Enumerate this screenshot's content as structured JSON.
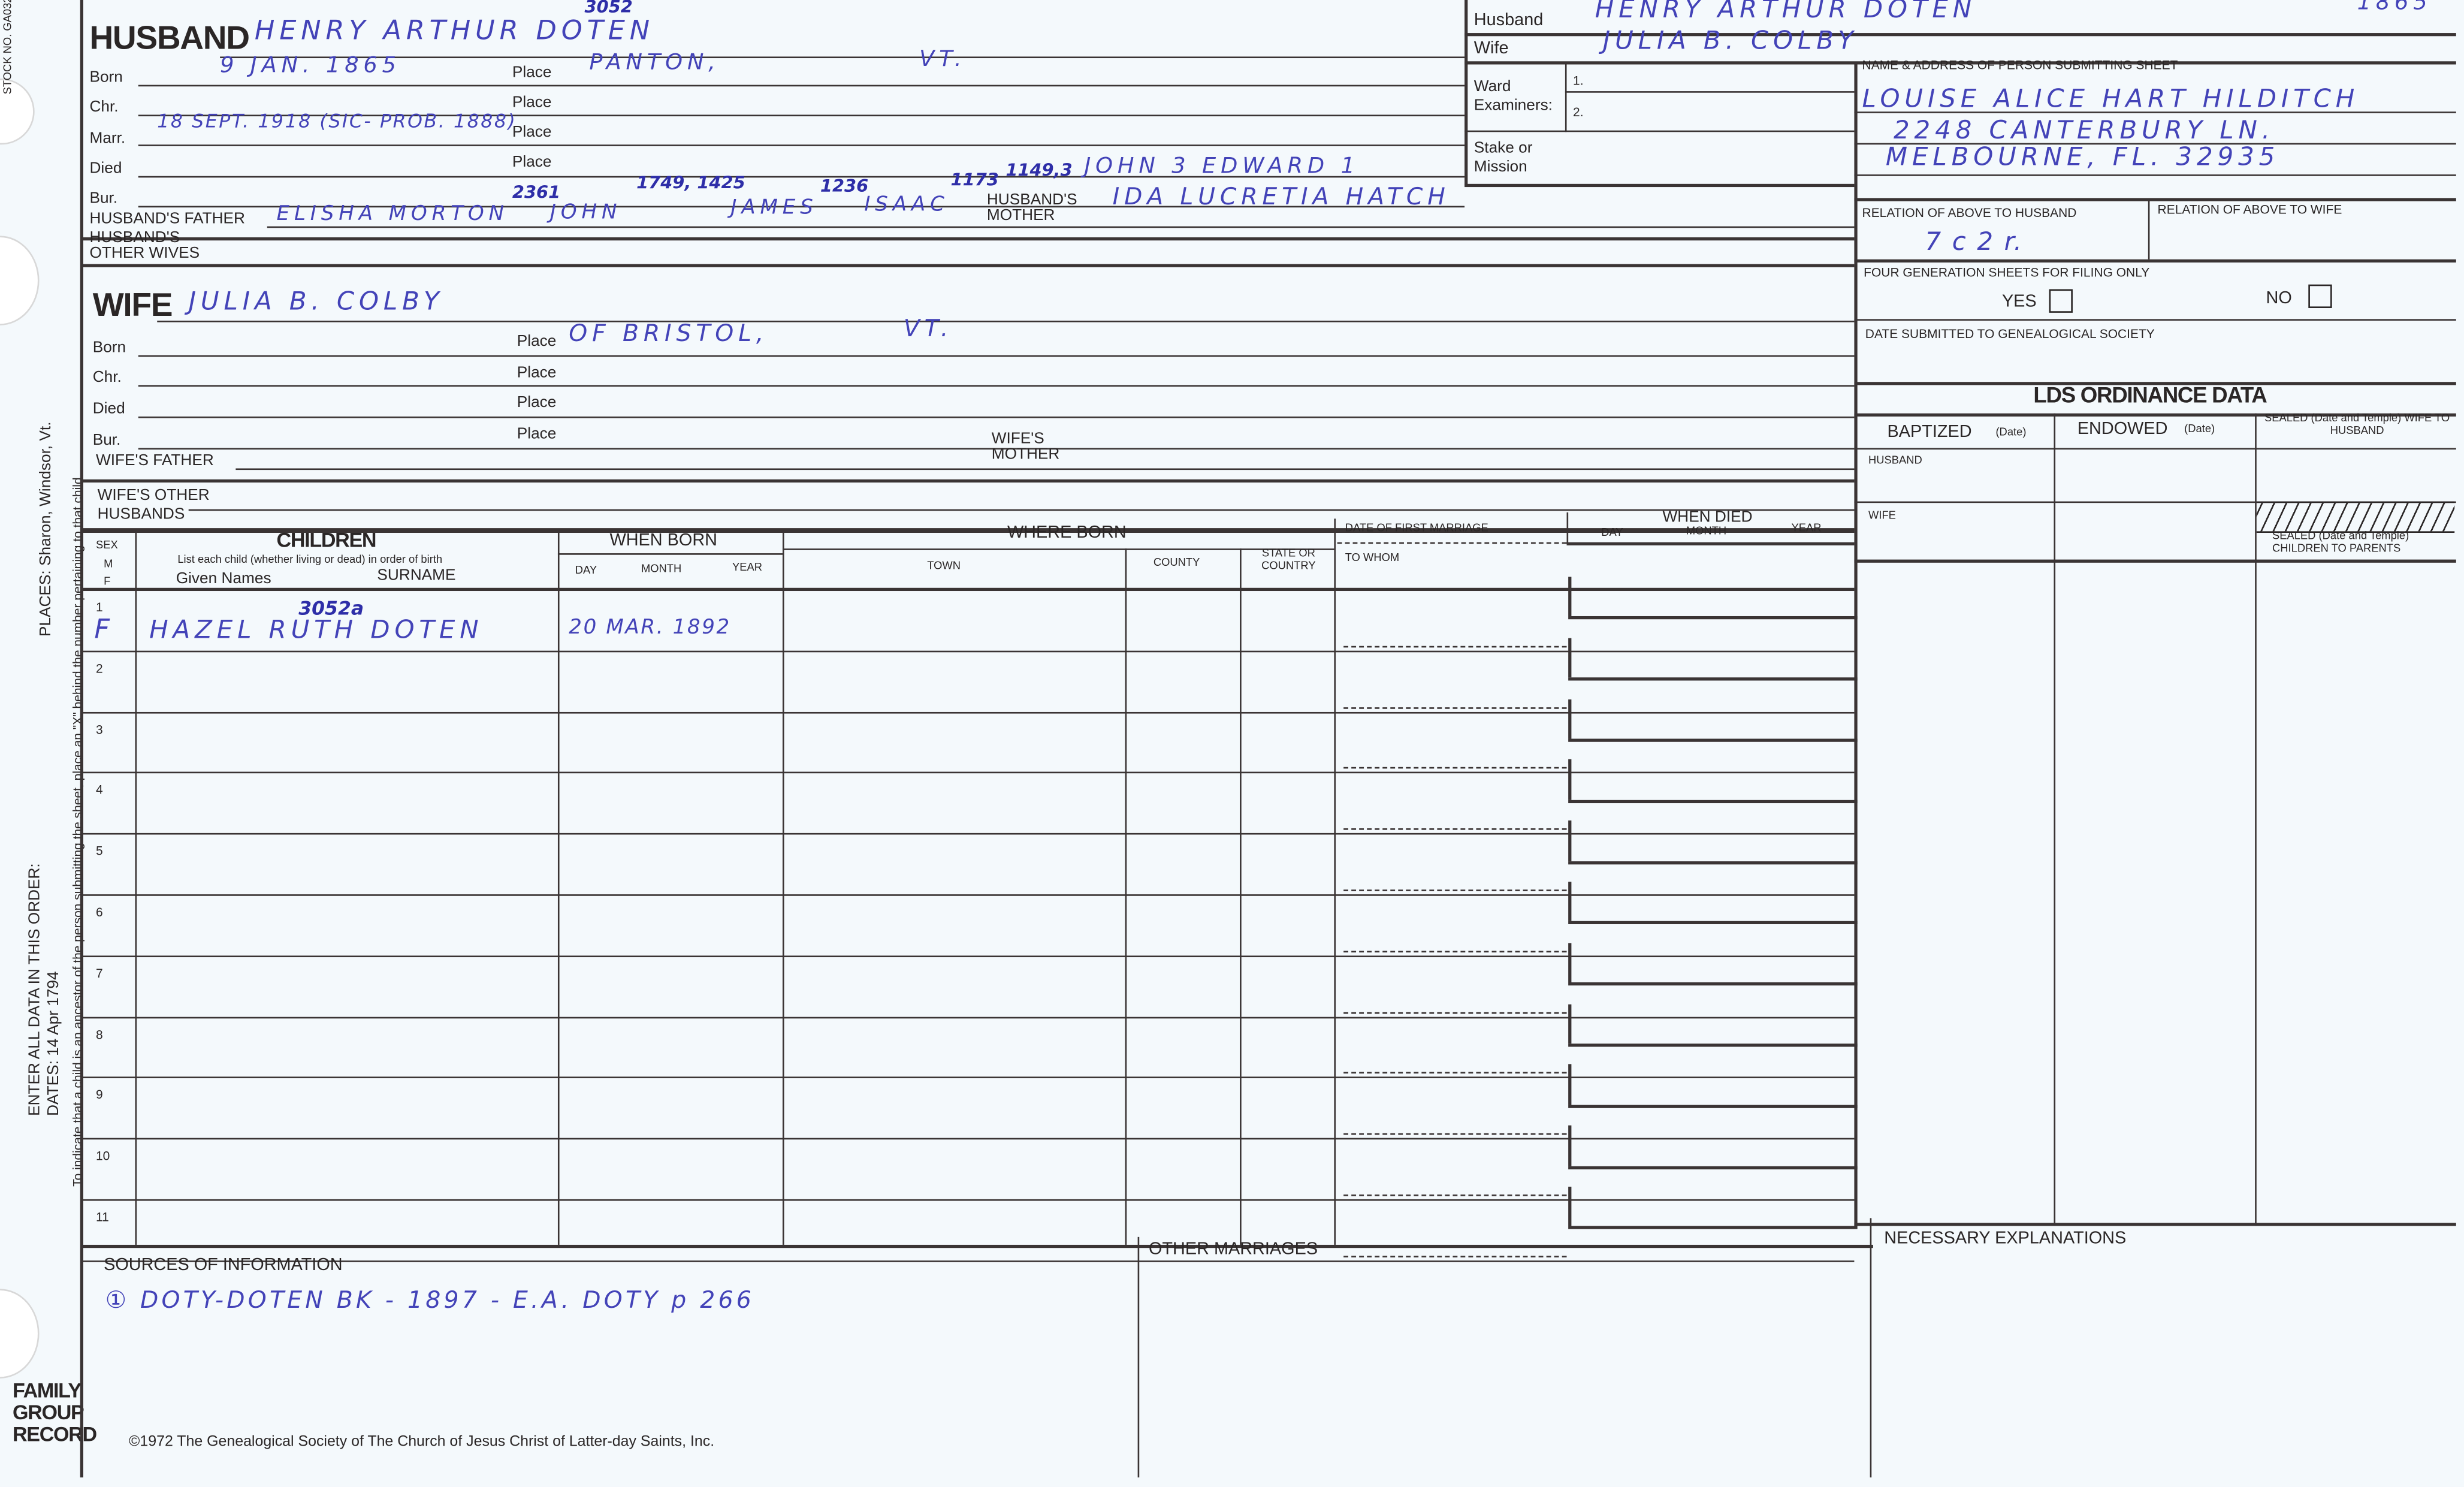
{
  "side": {
    "stock_no": "STOCK NO. GA032",
    "enter_order": "ENTER ALL DATA IN THIS ORDER:",
    "dates_example": "DATES: 14 Apr 1794",
    "places_example": "PLACES: Sharon, Windsor, Vt.",
    "ancestor_note": "To indicate that a child is an ancestor of the person submitting the sheet, place an \"X\" behind the number pertaining to that child.",
    "form_title": [
      "FAMILY",
      "GROUP",
      "RECORD"
    ]
  },
  "husband": {
    "heading": "HUSBAND",
    "name": "HENRY ARTHUR DOTEN",
    "ref_number": "3052",
    "born_label": "Born",
    "born": "9 JAN. 1865",
    "chr_label": "Chr.",
    "marr_label": "Marr.",
    "marr": "18 SEPT. 1918 (SIC- PROB. 1888)",
    "died_label": "Died",
    "bur_label": "Bur.",
    "place_label": "Place",
    "born_place": "PANTON,",
    "born_place_state": "VT.",
    "father_label": "HUSBAND'S FATHER",
    "father": "ELISHA MORTON",
    "father_lineage": [
      {
        "num": "2361",
        "name": "JOHN"
      },
      {
        "num": "1749, 1425",
        "name": "JAMES"
      },
      {
        "num": "1236",
        "name": "ISAAC"
      },
      {
        "num": "1173",
        "name": ""
      },
      {
        "num": "1149,3",
        "name": "JOHN 3  EDWARD 1"
      }
    ],
    "mother_label": "HUSBAND'S MOTHER",
    "mother": "IDA LUCRETIA HATCH",
    "other_wives_label": "HUSBAND'S OTHER WIVES"
  },
  "summary": {
    "husband_label": "Husband",
    "husband": "HENRY ARTHUR DOTEN",
    "husband_year": "1865",
    "wife_label": "Wife",
    "wife": "JULIA B. COLBY",
    "ward_examiners_label": "Ward Examiners:",
    "examiner_1": "1.",
    "examiner_2": "2.",
    "stake_label": "Stake or Mission"
  },
  "submitter": {
    "label": "NAME & ADDRESS OF PERSON SUBMITTING SHEET",
    "lines": [
      "LOUISE ALICE HART HILDITCH",
      "2248 CANTERBURY LN.",
      "MELBOURNE, FL. 32935"
    ],
    "relation_husband_label": "RELATION OF ABOVE TO HUSBAND",
    "relation_husband": "7 c 2 r.",
    "relation_wife_label": "RELATION OF ABOVE TO WIFE",
    "four_gen_label": "FOUR GENERATION SHEETS FOR FILING ONLY",
    "yes_label": "YES",
    "no_label": "NO",
    "yes_checked": false,
    "no_checked": false,
    "date_submitted_label": "DATE SUBMITTED TO GENEALOGICAL SOCIETY"
  },
  "wife": {
    "heading": "WIFE",
    "name": "JULIA B. COLBY",
    "born_label": "Born",
    "chr_label": "Chr.",
    "died_label": "Died",
    "bur_label": "Bur.",
    "place_label": "Place",
    "born_place": "OF BRISTOL,",
    "born_place_state": "VT.",
    "father_label": "WIFE'S FATHER",
    "mother_label": "WIFE'S MOTHER",
    "other_husbands_label": "WIFE'S OTHER HUSBANDS"
  },
  "children": {
    "sex_header": "SEX",
    "m": "M",
    "f": "F",
    "heading": "CHILDREN",
    "instruction": "List each child (whether living or dead) in order of birth",
    "given_label": "Given Names",
    "surname_label": "SURNAME",
    "when_born": "WHEN BORN",
    "day": "DAY",
    "month": "MONTH",
    "year": "YEAR",
    "where_born": "WHERE BORN",
    "town": "TOWN",
    "county": "COUNTY",
    "state": "STATE OR COUNTRY",
    "first_marriage": "DATE OF FIRST MARRIAGE",
    "to_whom": "TO WHOM",
    "when_died": "WHEN DIED",
    "rows": [
      {
        "num": "1",
        "sex": "F",
        "ref": "3052a",
        "name": "HAZEL RUTH DOTEN",
        "born": "20 MAR. 1892"
      },
      {
        "num": "2"
      },
      {
        "num": "3"
      },
      {
        "num": "4"
      },
      {
        "num": "5"
      },
      {
        "num": "6"
      },
      {
        "num": "7"
      },
      {
        "num": "8"
      },
      {
        "num": "9"
      },
      {
        "num": "10"
      },
      {
        "num": "11"
      }
    ]
  },
  "ordinance": {
    "heading": "LDS ORDINANCE DATA",
    "baptized": "BAPTIZED",
    "endowed": "ENDOWED",
    "date": "(Date)",
    "sealed_wife": "SEALED (Date and Temple) WIFE TO HUSBAND",
    "husband": "HUSBAND",
    "wife": "WIFE",
    "sealed_children": "SEALED (Date and Temple) CHILDREN TO PARENTS"
  },
  "footer": {
    "sources_label": "SOURCES OF INFORMATION",
    "sources": "① DOTY-DOTEN BK - 1897 - E.A. DOTY p 266",
    "other_marriages_label": "OTHER MARRIAGES",
    "explanations_label": "NECESSARY EXPLANATIONS",
    "copyright": "©1972 The Genealogical Society of The Church of Jesus Christ of Latter-day Saints, Inc."
  },
  "colors": {
    "ink": "#4343b8",
    "print": "#2a2626",
    "paper": "#f4f9fc"
  }
}
